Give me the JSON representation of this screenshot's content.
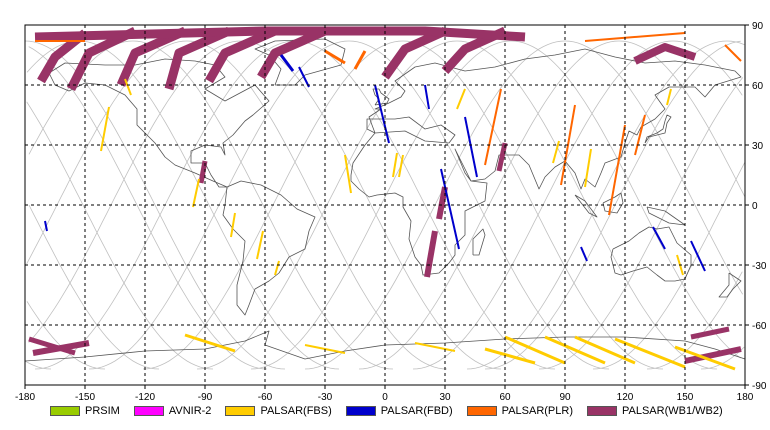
{
  "map": {
    "x_ticks": [
      "-180",
      "-150",
      "-120",
      "-90",
      "-60",
      "-30",
      "0",
      "30",
      "60",
      "90",
      "120",
      "150",
      "180"
    ],
    "y_ticks": [
      "90",
      "60",
      "30",
      "0",
      "-30",
      "-60",
      "-90"
    ]
  },
  "legend": {
    "items": [
      {
        "label": "PRSIM",
        "color": "#99cc00"
      },
      {
        "label": "AVNIR-2",
        "color": "#ff00ff"
      },
      {
        "label": "PALSAR(FBS)",
        "color": "#ffcc00"
      },
      {
        "label": "PALSAR(FBD)",
        "color": "#0000cc"
      },
      {
        "label": "PALSAR(PLR)",
        "color": "#ff6600"
      },
      {
        "label": "PALSAR(WB1/WB2)",
        "color": "#993366"
      }
    ]
  },
  "colors": {
    "frame": "#000000",
    "grid": "#000000",
    "orbit": "#c0c0c0",
    "coast": "#555555"
  },
  "chart_data": {
    "type": "map",
    "projection": "equirectangular",
    "xlim": [
      -180,
      180
    ],
    "ylim": [
      -90,
      90
    ],
    "grid": true,
    "legend_position": "bottom",
    "observations": [
      {
        "sensor": "PALSAR(WB1/WB2)",
        "path": [
          [
            -150,
            86
          ],
          [
            -165,
            74
          ],
          [
            -172,
            62
          ]
        ],
        "w": 9
      },
      {
        "sensor": "PALSAR(WB1/WB2)",
        "path": [
          [
            -125,
            87
          ],
          [
            -148,
            76
          ],
          [
            -157,
            58
          ]
        ],
        "w": 9
      },
      {
        "sensor": "PALSAR(WB1/WB2)",
        "path": [
          [
            -100,
            87
          ],
          [
            -125,
            76
          ],
          [
            -132,
            60
          ]
        ],
        "w": 9
      },
      {
        "sensor": "PALSAR(WB1/WB2)",
        "path": [
          [
            -78,
            87
          ],
          [
            -103,
            76
          ],
          [
            -108,
            58
          ]
        ],
        "w": 9
      },
      {
        "sensor": "PALSAR(WB1/WB2)",
        "path": [
          [
            -55,
            87
          ],
          [
            -80,
            76
          ],
          [
            -88,
            62
          ]
        ],
        "w": 9
      },
      {
        "sensor": "PALSAR(WB1/WB2)",
        "path": [
          [
            -30,
            87
          ],
          [
            -55,
            76
          ],
          [
            -62,
            64
          ]
        ],
        "w": 9
      },
      {
        "sensor": "PALSAR(WB1/WB2)",
        "path": [
          [
            30,
            87
          ],
          [
            10,
            78
          ],
          [
            0,
            64
          ]
        ],
        "w": 9
      },
      {
        "sensor": "PALSAR(WB1/WB2)",
        "path": [
          [
            60,
            87
          ],
          [
            40,
            78
          ],
          [
            30,
            67
          ]
        ],
        "w": 9
      },
      {
        "sensor": "PALSAR(WB1/WB2)",
        "path": [
          [
            -175,
            84
          ],
          [
            -60,
            87
          ],
          [
            20,
            87
          ],
          [
            70,
            84
          ]
        ],
        "w": 9
      },
      {
        "sensor": "PALSAR(WB1/WB2)",
        "path": [
          [
            125,
            72
          ],
          [
            140,
            79
          ],
          [
            155,
            74
          ]
        ],
        "w": 8
      },
      {
        "sensor": "PALSAR(WB1/WB2)",
        "path": [
          [
            -90,
            22
          ],
          [
            -92,
            11
          ]
        ],
        "w": 5
      },
      {
        "sensor": "PALSAR(WB1/WB2)",
        "path": [
          [
            30,
            9
          ],
          [
            27,
            -7
          ]
        ],
        "w": 6
      },
      {
        "sensor": "PALSAR(WB1/WB2)",
        "path": [
          [
            25,
            -13
          ],
          [
            21,
            -36
          ]
        ],
        "w": 6
      },
      {
        "sensor": "PALSAR(WB1/WB2)",
        "path": [
          [
            60,
            31
          ],
          [
            57,
            17
          ]
        ],
        "w": 5
      },
      {
        "sensor": "PALSAR(WB1/WB2)",
        "path": [
          [
            -178,
            -67
          ],
          [
            -155,
            -74
          ]
        ],
        "w": 5
      },
      {
        "sensor": "PALSAR(WB1/WB2)",
        "path": [
          [
            -176,
            -74
          ],
          [
            -148,
            -69
          ]
        ],
        "w": 6
      },
      {
        "sensor": "PALSAR(WB1/WB2)",
        "path": [
          [
            153,
            -66
          ],
          [
            172,
            -62
          ]
        ],
        "w": 5
      },
      {
        "sensor": "PALSAR(WB1/WB2)",
        "path": [
          [
            150,
            -78
          ],
          [
            178,
            -72
          ]
        ],
        "w": 6
      },
      {
        "sensor": "PALSAR(FBS)",
        "path": [
          [
            -138,
            49
          ],
          [
            -142,
            27
          ]
        ],
        "w": 2
      },
      {
        "sensor": "PALSAR(FBS)",
        "path": [
          [
            -93,
            13
          ],
          [
            -96,
            -1
          ]
        ],
        "w": 2
      },
      {
        "sensor": "PALSAR(FBS)",
        "path": [
          [
            -75,
            -4
          ],
          [
            -77,
            -16
          ]
        ],
        "w": 2
      },
      {
        "sensor": "PALSAR(FBS)",
        "path": [
          [
            -61,
            -13
          ],
          [
            -64,
            -27
          ]
        ],
        "w": 2
      },
      {
        "sensor": "PALSAR(FBS)",
        "path": [
          [
            -53,
            -28
          ],
          [
            -55,
            -35
          ]
        ],
        "w": 2
      },
      {
        "sensor": "PALSAR(FBS)",
        "path": [
          [
            -20,
            25
          ],
          [
            -17,
            6
          ]
        ],
        "w": 2
      },
      {
        "sensor": "PALSAR(FBS)",
        "path": [
          [
            6,
            26
          ],
          [
            4,
            14
          ]
        ],
        "w": 2
      },
      {
        "sensor": "PALSAR(FBS)",
        "path": [
          [
            9,
            25
          ],
          [
            7,
            14
          ]
        ],
        "w": 2
      },
      {
        "sensor": "PALSAR(FBS)",
        "path": [
          [
            40,
            58
          ],
          [
            36,
            48
          ]
        ],
        "w": 2
      },
      {
        "sensor": "PALSAR(FBS)",
        "path": [
          [
            87,
            32
          ],
          [
            84,
            21
          ]
        ],
        "w": 2
      },
      {
        "sensor": "PALSAR(FBS)",
        "path": [
          [
            103,
            28
          ],
          [
            100,
            9
          ]
        ],
        "w": 2
      },
      {
        "sensor": "PALSAR(FBS)",
        "path": [
          [
            143,
            58
          ],
          [
            141,
            50
          ]
        ],
        "w": 2
      },
      {
        "sensor": "PALSAR(FBS)",
        "path": [
          [
            146,
            -25
          ],
          [
            149,
            -35
          ]
        ],
        "w": 2
      },
      {
        "sensor": "PALSAR(FBS)",
        "path": [
          [
            -100,
            -65
          ],
          [
            -75,
            -73
          ]
        ],
        "w": 3
      },
      {
        "sensor": "PALSAR(FBS)",
        "path": [
          [
            -40,
            -70
          ],
          [
            -20,
            -74
          ]
        ],
        "w": 2
      },
      {
        "sensor": "PALSAR(FBS)",
        "path": [
          [
            15,
            -69
          ],
          [
            35,
            -73
          ]
        ],
        "w": 2
      },
      {
        "sensor": "PALSAR(FBS)",
        "path": [
          [
            50,
            -72
          ],
          [
            75,
            -79
          ]
        ],
        "w": 3
      },
      {
        "sensor": "PALSAR(FBS)",
        "path": [
          [
            60,
            -66
          ],
          [
            90,
            -79
          ]
        ],
        "w": 3
      },
      {
        "sensor": "PALSAR(FBS)",
        "path": [
          [
            80,
            -66
          ],
          [
            110,
            -79
          ]
        ],
        "w": 3
      },
      {
        "sensor": "PALSAR(FBS)",
        "path": [
          [
            95,
            -66
          ],
          [
            125,
            -79
          ]
        ],
        "w": 3
      },
      {
        "sensor": "PALSAR(FBS)",
        "path": [
          [
            115,
            -67
          ],
          [
            150,
            -81
          ]
        ],
        "w": 3
      },
      {
        "sensor": "PALSAR(FBS)",
        "path": [
          [
            145,
            -71
          ],
          [
            175,
            -82
          ]
        ],
        "w": 3
      },
      {
        "sensor": "PALSAR(FBS)",
        "path": [
          [
            -130,
            63
          ],
          [
            -127,
            55
          ]
        ],
        "w": 2
      },
      {
        "sensor": "PALSAR(FBD)",
        "path": [
          [
            -43,
            69
          ],
          [
            -38,
            59
          ]
        ],
        "w": 2
      },
      {
        "sensor": "PALSAR(FBD)",
        "path": [
          [
            -52,
            75
          ],
          [
            -46,
            67
          ]
        ],
        "w": 3
      },
      {
        "sensor": "PALSAR(FBD)",
        "path": [
          [
            -5,
            60
          ],
          [
            2,
            31
          ]
        ],
        "w": 2
      },
      {
        "sensor": "PALSAR(FBD)",
        "path": [
          [
            20,
            60
          ],
          [
            22,
            48
          ]
        ],
        "w": 2
      },
      {
        "sensor": "PALSAR(FBD)",
        "path": [
          [
            40,
            44
          ],
          [
            46,
            14
          ]
        ],
        "w": 2
      },
      {
        "sensor": "PALSAR(FBD)",
        "path": [
          [
            28,
            18
          ],
          [
            37,
            -22
          ]
        ],
        "w": 2
      },
      {
        "sensor": "PALSAR(FBD)",
        "path": [
          [
            98,
            -21
          ],
          [
            101,
            -28
          ]
        ],
        "w": 2
      },
      {
        "sensor": "PALSAR(FBD)",
        "path": [
          [
            153,
            -18
          ],
          [
            160,
            -33
          ]
        ],
        "w": 2
      },
      {
        "sensor": "PALSAR(FBD)",
        "path": [
          [
            -170,
            -8
          ],
          [
            -169,
            -13
          ]
        ],
        "w": 2
      },
      {
        "sensor": "PALSAR(FBD)",
        "path": [
          [
            134,
            -11
          ],
          [
            140,
            -22
          ]
        ],
        "w": 2
      },
      {
        "sensor": "PALSAR(PLR)",
        "path": [
          [
            -30,
            77
          ],
          [
            -20,
            71
          ]
        ],
        "w": 3
      },
      {
        "sensor": "PALSAR(PLR)",
        "path": [
          [
            -10,
            77
          ],
          [
            -15,
            68
          ]
        ],
        "w": 3
      },
      {
        "sensor": "PALSAR(PLR)",
        "path": [
          [
            -175,
            82
          ],
          [
            -150,
            82
          ]
        ],
        "w": 2
      },
      {
        "sensor": "PALSAR(PLR)",
        "path": [
          [
            100,
            82
          ],
          [
            150,
            86
          ]
        ],
        "w": 2
      },
      {
        "sensor": "PALSAR(PLR)",
        "path": [
          [
            58,
            58
          ],
          [
            50,
            20
          ]
        ],
        "w": 2
      },
      {
        "sensor": "PALSAR(PLR)",
        "path": [
          [
            95,
            50
          ],
          [
            88,
            10
          ]
        ],
        "w": 2
      },
      {
        "sensor": "PALSAR(PLR)",
        "path": [
          [
            120,
            40
          ],
          [
            112,
            -5
          ]
        ],
        "w": 2
      },
      {
        "sensor": "PALSAR(PLR)",
        "path": [
          [
            130,
            45
          ],
          [
            125,
            25
          ]
        ],
        "w": 2
      },
      {
        "sensor": "PALSAR(PLR)",
        "path": [
          [
            170,
            80
          ],
          [
            178,
            72
          ]
        ],
        "w": 2
      }
    ]
  }
}
